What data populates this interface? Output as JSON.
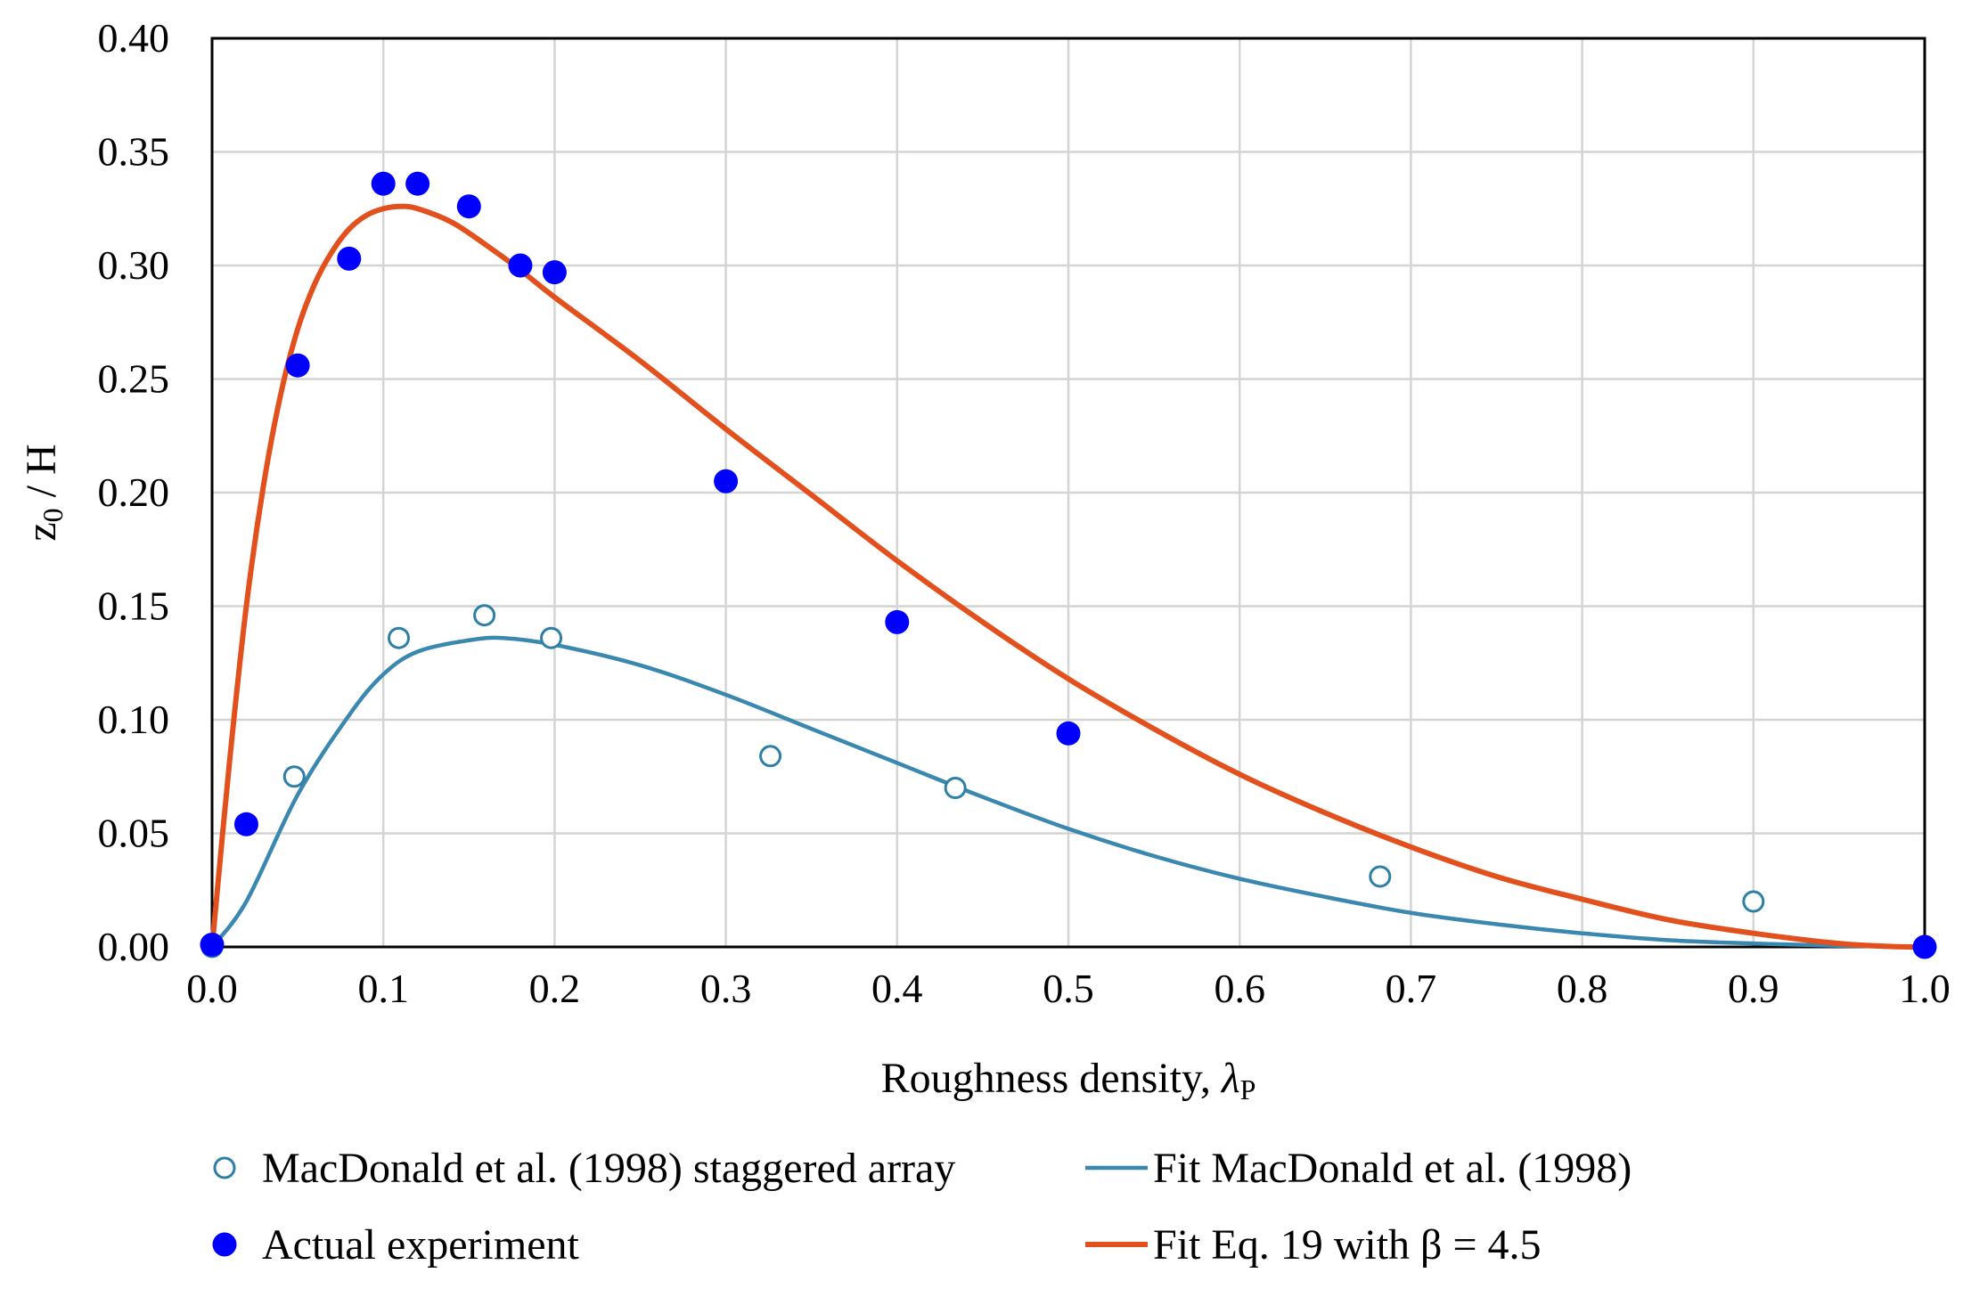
{
  "chart_data": {
    "type": "scatter",
    "title": "",
    "xlabel": "Roughness density, ",
    "xlabel_symbol": "λ",
    "xlabel_sub": "P",
    "ylabel": "z",
    "ylabel_sub": "0",
    "ylabel_rest": " / H",
    "xlim": [
      0.0,
      1.0
    ],
    "ylim": [
      0.0,
      0.4
    ],
    "grid": true,
    "x_ticks": [
      "0.0",
      "0.1",
      "0.2",
      "0.3",
      "0.4",
      "0.5",
      "0.6",
      "0.7",
      "0.8",
      "0.9",
      "1.0"
    ],
    "y_ticks": [
      "0.00",
      "0.05",
      "0.10",
      "0.15",
      "0.20",
      "0.25",
      "0.30",
      "0.35",
      "0.40"
    ],
    "legend_position": "bottom",
    "series": [
      {
        "name": "MacDonald et al. (1998) staggered array",
        "kind": "scatter-open",
        "color": "#2e7fa8",
        "points": [
          [
            0.0,
            0.0
          ],
          [
            0.048,
            0.075
          ],
          [
            0.109,
            0.136
          ],
          [
            0.159,
            0.146
          ],
          [
            0.198,
            0.136
          ],
          [
            0.326,
            0.084
          ],
          [
            0.434,
            0.07
          ],
          [
            0.682,
            0.031
          ],
          [
            0.9,
            0.02
          ]
        ]
      },
      {
        "name": "Actual experiment",
        "kind": "scatter-filled",
        "color": "#0000ff",
        "points": [
          [
            0.0,
            0.001
          ],
          [
            0.02,
            0.054
          ],
          [
            0.05,
            0.256
          ],
          [
            0.08,
            0.303
          ],
          [
            0.1,
            0.336
          ],
          [
            0.12,
            0.336
          ],
          [
            0.15,
            0.326
          ],
          [
            0.18,
            0.3
          ],
          [
            0.2,
            0.297
          ],
          [
            0.3,
            0.205
          ],
          [
            0.4,
            0.143
          ],
          [
            0.5,
            0.094
          ],
          [
            1.0,
            0.0
          ]
        ]
      },
      {
        "name": "Fit MacDonald et al. (1998)",
        "kind": "line",
        "color": "#3a87b0",
        "points": [
          [
            0.0,
            0.0
          ],
          [
            0.02,
            0.02
          ],
          [
            0.05,
            0.067
          ],
          [
            0.08,
            0.102
          ],
          [
            0.1,
            0.12
          ],
          [
            0.12,
            0.13
          ],
          [
            0.15,
            0.135
          ],
          [
            0.17,
            0.136
          ],
          [
            0.2,
            0.133
          ],
          [
            0.25,
            0.124
          ],
          [
            0.3,
            0.111
          ],
          [
            0.35,
            0.096
          ],
          [
            0.4,
            0.081
          ],
          [
            0.45,
            0.066
          ],
          [
            0.5,
            0.052
          ],
          [
            0.55,
            0.04
          ],
          [
            0.6,
            0.03
          ],
          [
            0.65,
            0.022
          ],
          [
            0.7,
            0.015
          ],
          [
            0.75,
            0.01
          ],
          [
            0.8,
            0.006
          ],
          [
            0.85,
            0.003
          ],
          [
            0.9,
            0.0015
          ],
          [
            0.95,
            0.0005
          ],
          [
            1.0,
            0.0
          ]
        ]
      },
      {
        "name": "Fit Eq. 19 with β = 4.5",
        "kind": "line",
        "color": "#e2511d",
        "points": [
          [
            0.0,
            0.0
          ],
          [
            0.01,
            0.08
          ],
          [
            0.02,
            0.15
          ],
          [
            0.03,
            0.203
          ],
          [
            0.04,
            0.243
          ],
          [
            0.05,
            0.272
          ],
          [
            0.06,
            0.292
          ],
          [
            0.07,
            0.306
          ],
          [
            0.08,
            0.316
          ],
          [
            0.09,
            0.322
          ],
          [
            0.1,
            0.325
          ],
          [
            0.11,
            0.326
          ],
          [
            0.12,
            0.325
          ],
          [
            0.14,
            0.319
          ],
          [
            0.16,
            0.309
          ],
          [
            0.18,
            0.298
          ],
          [
            0.2,
            0.286
          ],
          [
            0.25,
            0.258
          ],
          [
            0.3,
            0.228
          ],
          [
            0.35,
            0.199
          ],
          [
            0.4,
            0.17
          ],
          [
            0.45,
            0.143
          ],
          [
            0.5,
            0.118
          ],
          [
            0.55,
            0.096
          ],
          [
            0.6,
            0.076
          ],
          [
            0.65,
            0.059
          ],
          [
            0.7,
            0.044
          ],
          [
            0.75,
            0.031
          ],
          [
            0.8,
            0.021
          ],
          [
            0.85,
            0.012
          ],
          [
            0.9,
            0.006
          ],
          [
            0.95,
            0.0015
          ],
          [
            0.98,
            0.0002
          ],
          [
            1.0,
            0.0
          ]
        ]
      }
    ]
  }
}
